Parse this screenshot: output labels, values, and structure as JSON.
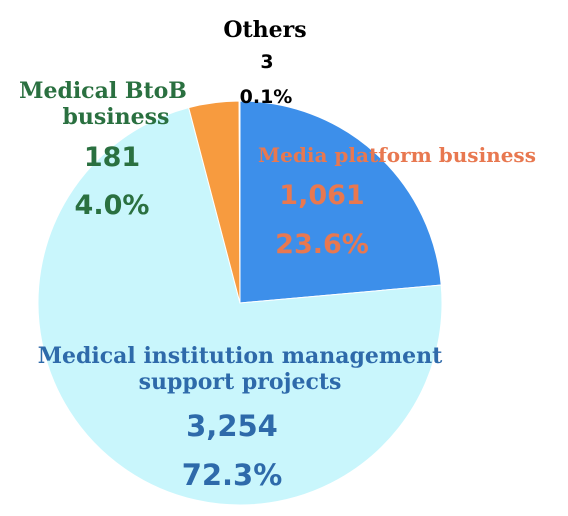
{
  "chart_data": {
    "type": "pie",
    "start_angle_deg": 0,
    "direction": "clockwise",
    "slices": [
      {
        "name": "Media platform business",
        "value": "1,061",
        "percent": "23.6%",
        "number": 1061,
        "color": "#3d8fea",
        "label_color": "#e87850"
      },
      {
        "name": "Medical institution management support projects",
        "name_lines": [
          "Medical institution management",
          "support projects"
        ],
        "value": "3,254",
        "percent": "72.3%",
        "number": 3254,
        "color": "#c9f6fc",
        "label_color": "#2e6aaa"
      },
      {
        "name": "Medical BtoB business",
        "name_lines": [
          "Medical BtoB",
          "business"
        ],
        "value": "181",
        "percent": "4.0%",
        "number": 181,
        "color": "#f79b3f",
        "label_color": "#2a7040"
      },
      {
        "name": "Others",
        "value": "3",
        "percent": "0.1%",
        "number": 3,
        "color": "#ffd000",
        "label_color": "#000000"
      }
    ]
  }
}
